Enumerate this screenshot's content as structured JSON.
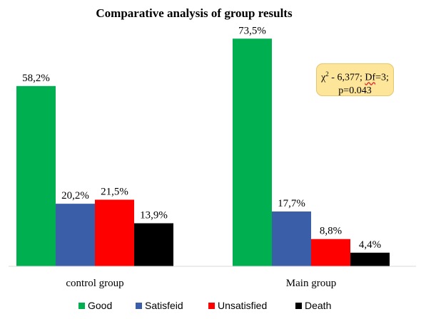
{
  "chart_data": {
    "type": "bar",
    "title": "Comparative analysis of group results",
    "categories": [
      "control group",
      "Main group"
    ],
    "series": [
      {
        "name": "Good",
        "color": "#00b050",
        "values": [
          58.2,
          73.5
        ],
        "labels": [
          "58,2%",
          "73,5%"
        ]
      },
      {
        "name": "Satisfeid",
        "color": "#3a5ea8",
        "values": [
          20.2,
          17.7
        ],
        "labels": [
          "20,2%",
          "17,7%"
        ]
      },
      {
        "name": "Unsatisfied",
        "color": "#ff0000",
        "values": [
          21.5,
          8.8
        ],
        "labels": [
          "21,5%",
          "8,8%"
        ]
      },
      {
        "name": "Death",
        "color": "#000000",
        "values": [
          13.9,
          4.4
        ],
        "labels": [
          "13,9%",
          "4,4%"
        ]
      }
    ],
    "ylim": [
      0,
      80
    ],
    "grid": false,
    "legend": "bottom",
    "xlabel": "",
    "ylabel": "",
    "annotation": {
      "chi_symbol": "χ",
      "chi_sup": "2",
      "line1_rest": " - 6,377; ",
      "df_word": "Df",
      "df_rest": "=3;",
      "line2": "p=0.043"
    }
  }
}
